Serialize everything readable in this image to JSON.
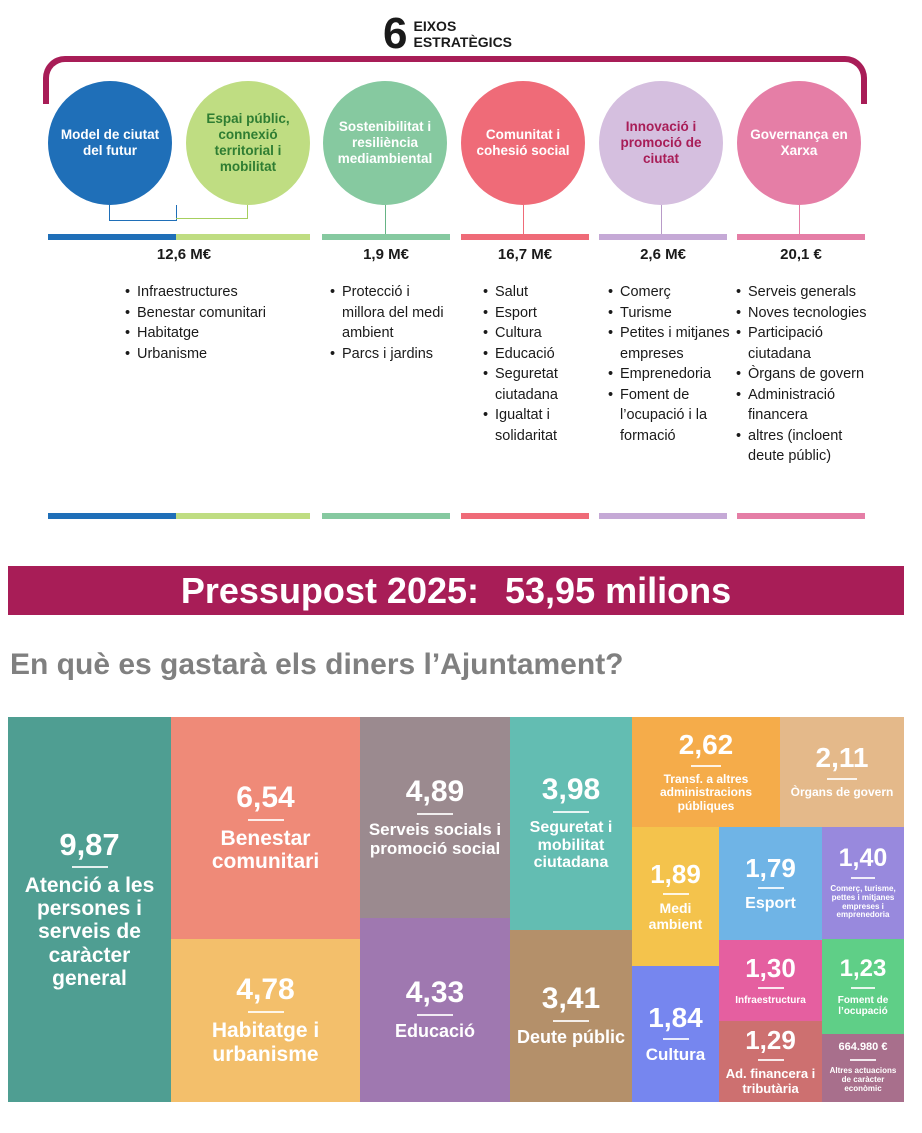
{
  "header": {
    "number": "6",
    "line1": "EIXOS",
    "line2": "ESTRATÈGICS"
  },
  "axes": [
    {
      "title": "Model de ciutat del futur",
      "amount": "12,6 M€",
      "items": [
        "Infraestructures",
        "Benestar comunitari",
        "Habitatge",
        "Urbanisme"
      ],
      "color": "#1f6fb8",
      "text_color": "#ffffff"
    },
    {
      "title": "Espai públic, connexió territorial i mobilitat",
      "amount": "",
      "items": [],
      "color": "#bfdd82",
      "text_color": "#2e7d32"
    },
    {
      "title": "Sostenibilitat i resiliència mediambiental",
      "amount": "1,9 M€",
      "items": [
        "Protecció i millora del medi ambient",
        "Parcs i jardins"
      ],
      "color": "#86c9a0",
      "text_color": "#ffffff"
    },
    {
      "title": "Comunitat i cohesió social",
      "amount": "16,7 M€",
      "items": [
        "Salut",
        "Esport",
        "Cultura",
        "Educació",
        "Seguretat ciutadana",
        "Igualtat i solidaritat"
      ],
      "color": "#ef6b78",
      "text_color": "#ffffff"
    },
    {
      "title": "Innovació i promoció de ciutat",
      "amount": "2,6 M€",
      "items": [
        "Comerç",
        "Turisme",
        "Petites i mitjanes empreses",
        "Emprenedoria",
        "Foment de l’ocupació i la formació"
      ],
      "color": "#d5bfdf",
      "text_color": "#a81d57"
    },
    {
      "title": "Governança en Xarxa",
      "amount": "20,1 €",
      "items": [
        "Serveis generals",
        "Noves tecnologies",
        "Participació ciutadana",
        "Òrgans de govern",
        "Administració financera",
        "altres (incloent deute públic)"
      ],
      "color": "#e57ea6",
      "text_color": "#ffffff"
    }
  ],
  "banner": {
    "left": "Pressupost 2025:",
    "right": "53,95 milions"
  },
  "subtitle": "En què es gastarà els diners l’Ajuntament?",
  "chart_data": {
    "type": "treemap",
    "title": "En què es gastarà els diners l’Ajuntament?",
    "items": [
      {
        "value": "9,87",
        "label": "Atenció a les persones i serveis de caràcter general",
        "color": "#4f9e92"
      },
      {
        "value": "6,54",
        "label": "Benestar comunitari",
        "color": "#ef8a78"
      },
      {
        "value": "4,78",
        "label": "Habitatge i urbanisme",
        "color": "#f3bf6b"
      },
      {
        "value": "4,89",
        "label": "Serveis socials i promoció social",
        "color": "#9b8a8f"
      },
      {
        "value": "4,33",
        "label": "Educació",
        "color": "#9f78b0"
      },
      {
        "value": "3,98",
        "label": "Seguretat i mobilitat ciutadana",
        "color": "#63bdb2"
      },
      {
        "value": "3,41",
        "label": "Deute públic",
        "color": "#b4906a"
      },
      {
        "value": "2,62",
        "label": "Transf. a altres administracions públiques",
        "color": "#f5ac4a"
      },
      {
        "value": "2,11",
        "label": "Òrgans de govern",
        "color": "#e4b98a"
      },
      {
        "value": "1,89",
        "label": "Medi ambient",
        "color": "#f4c34c"
      },
      {
        "value": "1,84",
        "label": "Cultura",
        "color": "#7686ef"
      },
      {
        "value": "1,79",
        "label": "Esport",
        "color": "#6fb4e6"
      },
      {
        "value": "1,40",
        "label": "Comerç, turisme, pettes i mitjanes empreses i emprenedoria",
        "color": "#9889dd"
      },
      {
        "value": "1,30",
        "label": "Infraestructura",
        "color": "#e55fa0"
      },
      {
        "value": "1,23",
        "label": "Foment de l’ocupació",
        "color": "#5fcf87"
      },
      {
        "value": "1,29",
        "label": "Ad. financera i tributària",
        "color": "#cd7070"
      },
      {
        "value": "664.980 €",
        "label": "Altres actuacions de caràcter econòmic",
        "color": "#a86f8c"
      }
    ]
  }
}
